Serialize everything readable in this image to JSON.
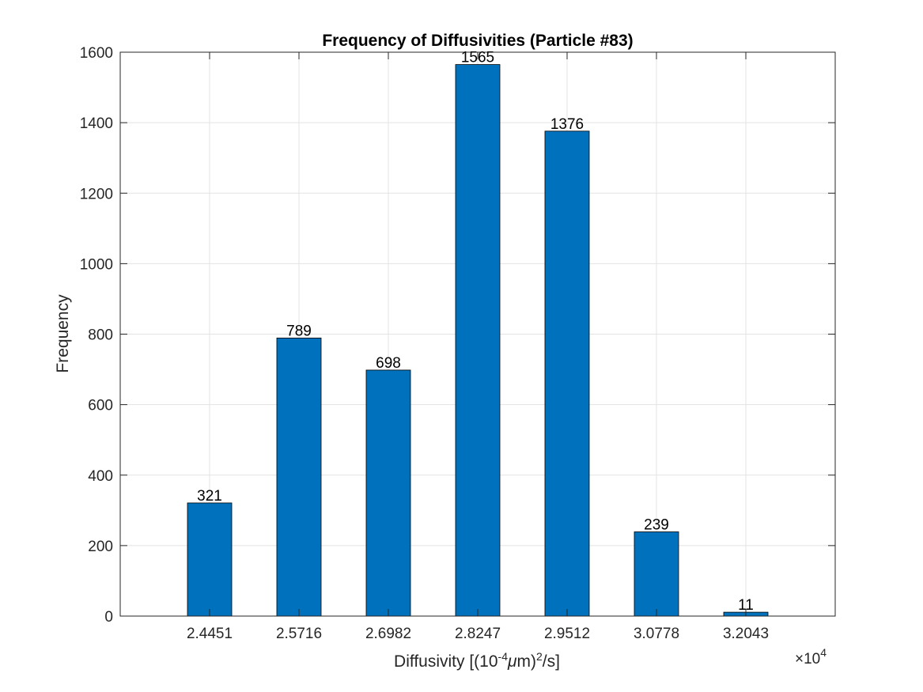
{
  "chart_data": {
    "type": "bar",
    "title": "Frequency of Diffusivities (Particle #83)",
    "xlabel": {
      "prefix": "Diffusivity [(10",
      "exp": "-4",
      "mu": "μ",
      "mid": "m)",
      "exp2": "2",
      "suffix": "/s]"
    },
    "ylabel": "Frequency",
    "x_multiplier": {
      "base": "×10",
      "exp": "4"
    },
    "categories": [
      "2.4451",
      "2.5716",
      "2.6982",
      "2.8247",
      "2.9512",
      "3.0778",
      "3.2043"
    ],
    "values": [
      321,
      789,
      698,
      1565,
      1376,
      239,
      11
    ],
    "data_labels": [
      "321",
      "789",
      "698",
      "1565",
      "1376",
      "239",
      "11"
    ],
    "ylim": [
      0,
      1600
    ],
    "yticks": [
      0,
      200,
      400,
      600,
      800,
      1000,
      1200,
      1400,
      1600
    ],
    "grid": true,
    "bar_color": "#0072BD",
    "bar_edge_color": "#000000"
  }
}
